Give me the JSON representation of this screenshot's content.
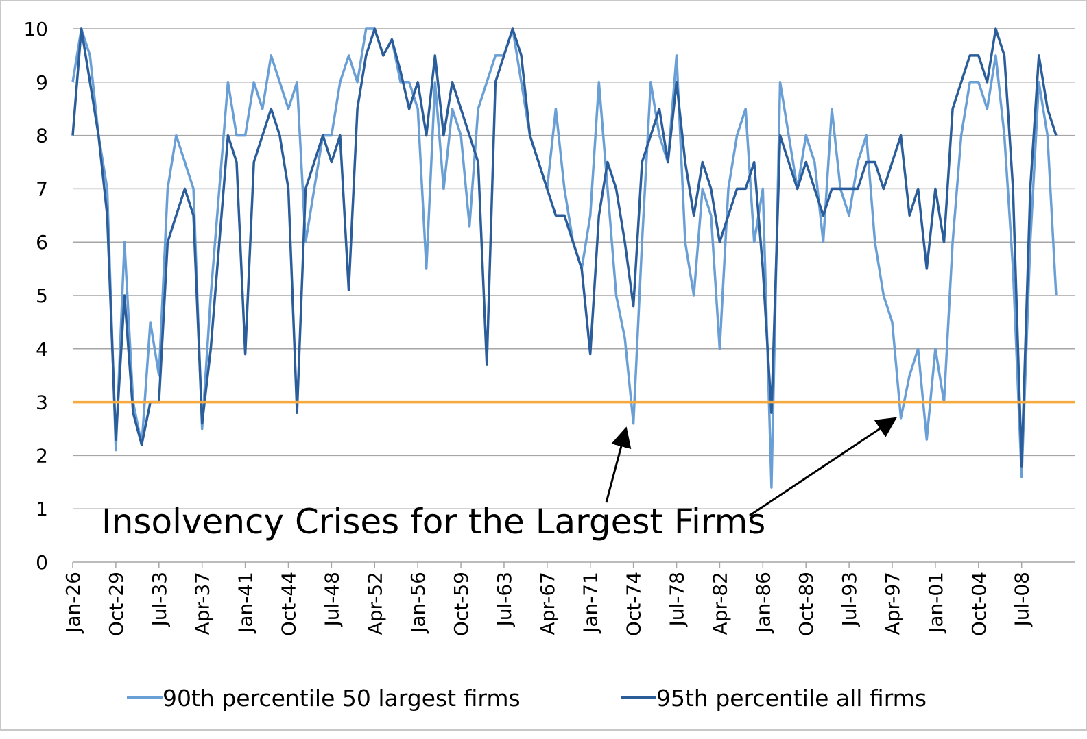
{
  "chart_data": {
    "type": "line",
    "annotation": "Insolvency Crises for the Largest Firms",
    "categories": [
      "Jan-26",
      null,
      null,
      null,
      null,
      "Oct-29",
      null,
      null,
      null,
      null,
      "Jul-33",
      null,
      null,
      null,
      null,
      "Apr-37",
      null,
      null,
      null,
      null,
      "Jan-41",
      null,
      null,
      null,
      null,
      "Oct-44",
      null,
      null,
      null,
      null,
      "Jul-48",
      null,
      null,
      null,
      null,
      "Apr-52",
      null,
      null,
      null,
      null,
      "Jan-56",
      null,
      null,
      null,
      null,
      "Oct-59",
      null,
      null,
      null,
      null,
      "Jul-63",
      null,
      null,
      null,
      null,
      "Apr-67",
      null,
      null,
      null,
      null,
      "Jan-71",
      null,
      null,
      null,
      null,
      "Oct-74",
      null,
      null,
      null,
      null,
      "Jul-78",
      null,
      null,
      null,
      null,
      "Apr-82",
      null,
      null,
      null,
      null,
      "Jan-86",
      null,
      null,
      null,
      null,
      "Oct-89",
      null,
      null,
      null,
      null,
      "Jul-93",
      null,
      null,
      null,
      null,
      "Apr-97",
      null,
      null,
      null,
      null,
      "Jan-01",
      null,
      null,
      null,
      null,
      "Oct-04",
      null,
      null,
      null,
      null,
      "Jul-08",
      null,
      null,
      null,
      null
    ],
    "series": [
      {
        "name": "90th percentile 50 largest firms",
        "color": "#6a9fd6",
        "values": [
          9,
          10,
          9.5,
          8,
          7,
          2.1,
          6,
          3,
          2.2,
          4.5,
          3.5,
          7,
          8,
          7.5,
          7,
          2.5,
          5,
          7,
          9,
          8,
          8,
          9,
          8.5,
          9.5,
          9,
          8.5,
          9,
          6,
          7,
          8,
          8,
          9,
          9.5,
          9,
          10,
          10,
          9.5,
          9.8,
          9,
          9,
          8.5,
          5.5,
          9,
          7,
          8.5,
          8,
          6.3,
          8.5,
          9,
          9.5,
          9.5,
          10,
          9,
          8,
          7.5,
          7,
          8.5,
          7,
          6,
          5.5,
          6.5,
          9,
          7,
          5,
          4.2,
          2.6,
          6,
          9,
          8,
          7.5,
          9.5,
          6,
          5,
          7,
          6.5,
          4,
          7,
          8,
          8.5,
          6,
          7,
          1.4,
          9,
          8,
          7,
          8,
          7.5,
          6,
          8.5,
          7,
          6.5,
          7.5,
          8,
          6,
          5,
          4.5,
          2.7,
          3.5,
          4,
          2.3,
          4,
          3,
          6,
          8,
          9,
          9,
          8.5,
          9.5,
          8,
          5.5,
          1.6,
          6,
          9,
          8,
          5
        ]
      },
      {
        "name": "95th percentile all firms",
        "color": "#2a5d9a",
        "values": [
          8,
          10,
          9,
          8,
          6.5,
          2.3,
          5,
          2.8,
          2.2,
          3,
          3,
          6,
          6.5,
          7,
          6.5,
          2.6,
          4,
          6,
          8,
          7.5,
          3.9,
          7.5,
          8,
          8.5,
          8,
          7,
          2.8,
          7,
          7.5,
          8,
          7.5,
          8,
          5.1,
          8.5,
          9.5,
          10,
          9.5,
          9.8,
          9.2,
          8.5,
          9,
          8,
          9.5,
          8,
          9,
          8.5,
          8,
          7.5,
          3.7,
          9,
          9.5,
          10,
          9.5,
          8,
          7.5,
          7,
          6.5,
          6.5,
          6,
          5.5,
          3.9,
          6.5,
          7.5,
          7,
          6,
          4.8,
          7.5,
          8,
          8.5,
          7.5,
          9,
          7.5,
          6.5,
          7.5,
          7,
          6,
          6.5,
          7,
          7,
          7.5,
          5.5,
          2.8,
          8,
          7.5,
          7,
          7.5,
          7,
          6.5,
          7,
          7,
          7,
          7,
          7.5,
          7.5,
          7,
          7.5,
          8,
          6.5,
          7,
          5.5,
          7,
          6,
          8.5,
          9,
          9.5,
          9.5,
          9,
          10,
          9.5,
          7,
          1.8,
          7,
          9.5,
          8.5,
          8
        ]
      }
    ],
    "reference_line": {
      "value": 3,
      "color": "#f5a93e"
    },
    "ylim": [
      0,
      10
    ],
    "yticks": [
      0,
      1,
      2,
      3,
      4,
      5,
      6,
      7,
      8,
      9,
      10
    ],
    "grid": true
  }
}
